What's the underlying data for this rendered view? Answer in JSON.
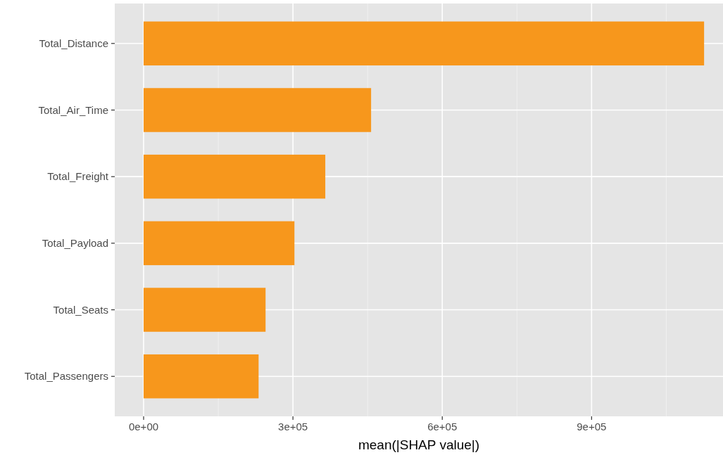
{
  "chart_data": {
    "type": "bar",
    "orientation": "horizontal",
    "xlabel": "mean(|SHAP value|)",
    "categories": [
      "Total_Distance",
      "Total_Air_Time",
      "Total_Freight",
      "Total_Payload",
      "Total_Seats",
      "Total_Passengers"
    ],
    "values": [
      1126000,
      457000,
      365000,
      303000,
      245000,
      231000
    ],
    "color": "#f7971c",
    "xlim": [
      -58000,
      1164000
    ],
    "xticks": [
      {
        "value": 0,
        "label": "0e+00"
      },
      {
        "value": 300000,
        "label": "3e+05"
      },
      {
        "value": 600000,
        "label": "6e+05"
      },
      {
        "value": 900000,
        "label": "9e+05"
      }
    ],
    "grid": true
  }
}
